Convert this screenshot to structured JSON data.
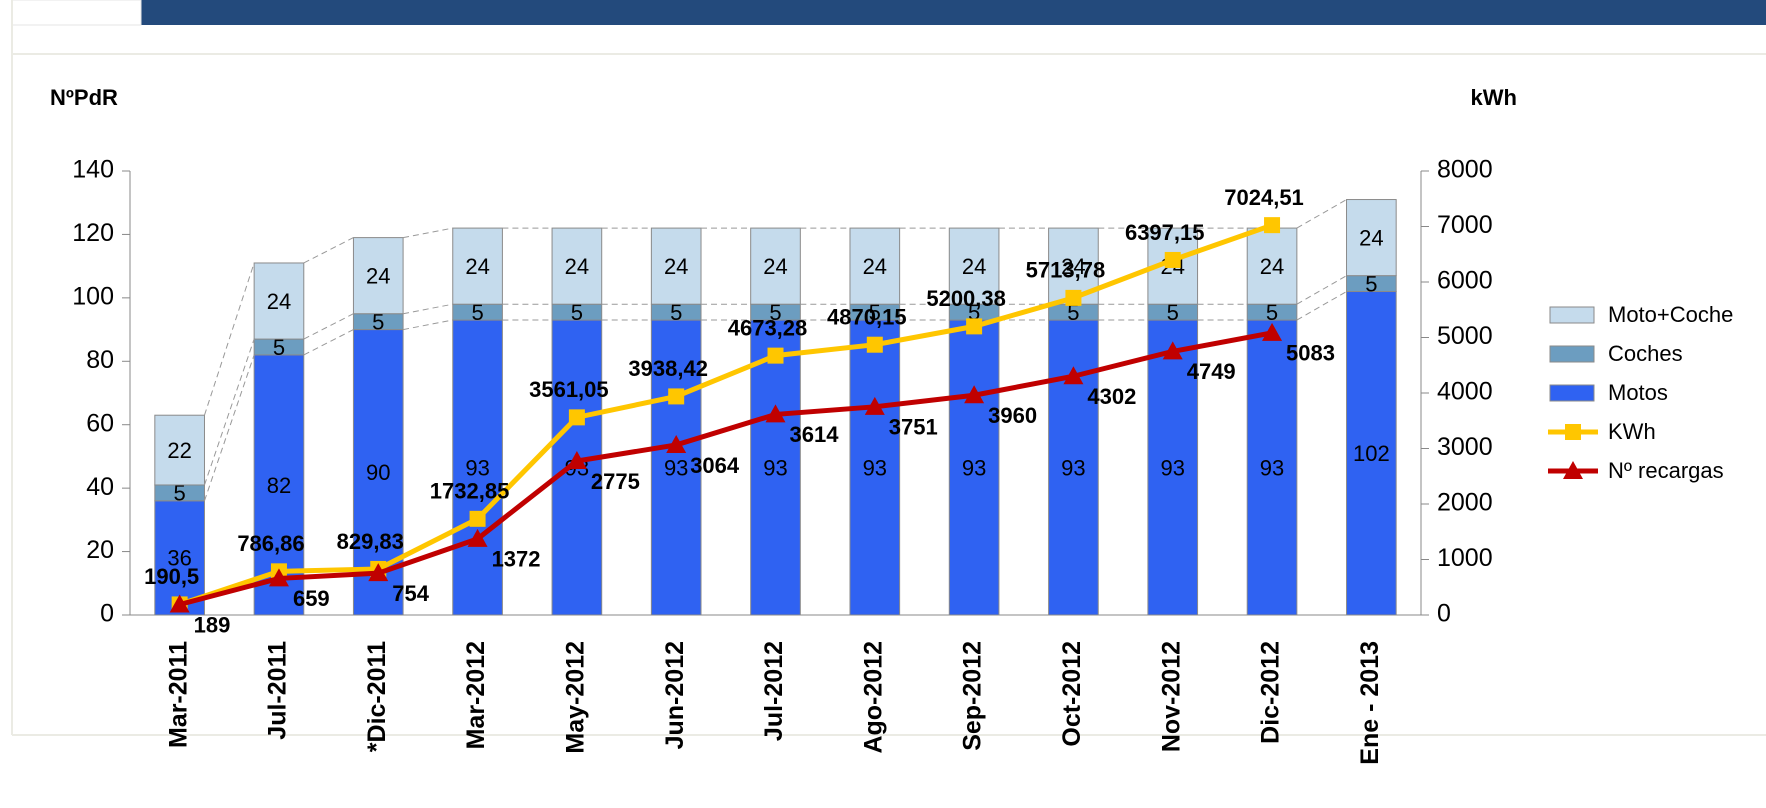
{
  "chart_data": {
    "type": "bar",
    "stacked": true,
    "y_label": "NºPdR",
    "y2_label": "kWh",
    "categories": [
      "Mar-2011",
      "Jul-2011",
      "*Dic-2011",
      "Mar-2012",
      "May-2012",
      "Jun-2012",
      "Jul-2012",
      "Ago-2012",
      "Sep-2012",
      "Oct-2012",
      "Nov-2012",
      "Dic-2012",
      "Ene - 2013"
    ],
    "series": [
      {
        "name": "Motos",
        "color": "#2f62f2",
        "values": [
          36,
          82,
          90,
          93,
          93,
          93,
          93,
          93,
          93,
          93,
          93,
          93,
          102
        ]
      },
      {
        "name": "Coches",
        "color": "#6c9dc0",
        "values": [
          5,
          5,
          5,
          5,
          5,
          5,
          5,
          5,
          5,
          5,
          5,
          5,
          5
        ]
      },
      {
        "name": "Moto+Coche",
        "color": "#c5dbec",
        "values": [
          22,
          24,
          24,
          24,
          24,
          24,
          24,
          24,
          24,
          24,
          24,
          24,
          24
        ]
      },
      {
        "name": "KWh",
        "type": "line",
        "axis": "y2",
        "color": "#ffc600",
        "marker": "square",
        "values": [
          190.5,
          786.86,
          829.83,
          1732.85,
          3561.05,
          3938.42,
          4673.28,
          4870.15,
          5200.38,
          5713.78,
          6397.15,
          7024.51,
          null
        ],
        "value_labels": [
          "190,5",
          "786,86",
          "829,83",
          "1732,85",
          "3561,05",
          "3938,42",
          "4673,28",
          "4870,15",
          "5200,38",
          "5713,78",
          "6397,15",
          "7024,51",
          null
        ]
      },
      {
        "name": "Nº recargas",
        "type": "line",
        "axis": "y2",
        "color": "#c00000",
        "marker": "triangle",
        "values": [
          189,
          659,
          754,
          1372,
          2775,
          3064,
          3614,
          3751,
          3960,
          4302,
          4749,
          5083,
          null
        ]
      }
    ],
    "ylim": [
      0,
      140
    ],
    "yticks": [
      0,
      20,
      40,
      60,
      80,
      100,
      120,
      140
    ],
    "y2lim": [
      0,
      8000
    ],
    "y2ticks": [
      0,
      1000,
      2000,
      3000,
      4000,
      5000,
      6000,
      7000,
      8000
    ],
    "legend": "right"
  }
}
